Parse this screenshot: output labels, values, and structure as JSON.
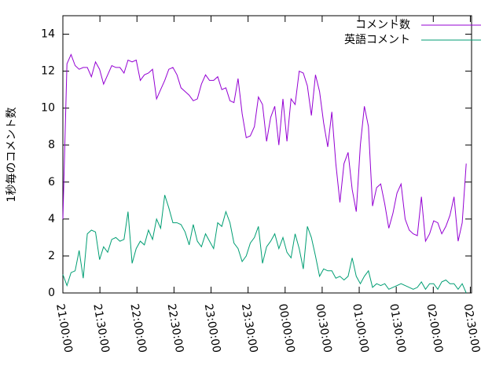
{
  "chart_data": {
    "type": "line",
    "y_label": "1秒毎のコメント数",
    "x": [
      0,
      3.3,
      6.6,
      9.9,
      13.2,
      16.5,
      19.8,
      23.1,
      26.4,
      29.7,
      33,
      36.3,
      39.6,
      42.9,
      46.2,
      49.5,
      52.8,
      56.1,
      59.4,
      62.7,
      66,
      69.3,
      72.6,
      75.9,
      79.2,
      82.5,
      85.8,
      89.1,
      92.4,
      95.7,
      99,
      102.3,
      105.6,
      108.9,
      112.2,
      115.5,
      118.8,
      122.1,
      125.4,
      128.7,
      132,
      135.3,
      138.6,
      141.9,
      145.2,
      148.5,
      151.8,
      155.1,
      158.4,
      161.7,
      165,
      168.3,
      171.6,
      174.9,
      178.2,
      181.5,
      184.8,
      188.1,
      191.4,
      194.7,
      198,
      201.3,
      204.6,
      207.9,
      211.2,
      214.5,
      217.8,
      221.1,
      224.4,
      227.7,
      231,
      234.3,
      237.6,
      240.9,
      244.2,
      247.5,
      250.8,
      254.1,
      257.4,
      260.7,
      264,
      267.3,
      270.6,
      273.9,
      277.2,
      280.5,
      283.8,
      287.1,
      290.4,
      293.7,
      297,
      300.3,
      303.6,
      306.9,
      310.2,
      313.5,
      316.8,
      320.1,
      323.4,
      326.7
    ],
    "series": [
      {
        "name": "コメント数",
        "color": "#9400d3",
        "values": [
          4.0,
          12.4,
          12.9,
          12.3,
          12.1,
          12.2,
          12.2,
          11.7,
          12.5,
          12.1,
          11.3,
          11.8,
          12.3,
          12.2,
          12.2,
          11.9,
          12.6,
          12.5,
          12.6,
          11.5,
          11.8,
          11.9,
          12.1,
          10.5,
          11.0,
          11.5,
          12.1,
          12.2,
          11.8,
          11.1,
          10.9,
          10.7,
          10.4,
          10.5,
          11.3,
          11.8,
          11.5,
          11.5,
          11.7,
          11.0,
          11.1,
          10.4,
          10.3,
          11.6,
          9.7,
          8.4,
          8.5,
          9.0,
          10.6,
          10.2,
          8.2,
          9.5,
          10.1,
          8.0,
          10.5,
          8.2,
          10.5,
          10.2,
          12.0,
          11.9,
          11.2,
          9.6,
          11.8,
          10.9,
          9.2,
          7.9,
          9.8,
          7.0,
          4.9,
          7.0,
          7.6,
          5.6,
          4.4,
          8.0,
          10.1,
          9.0,
          4.7,
          5.7,
          5.9,
          4.8,
          3.5,
          4.3,
          5.4,
          5.9,
          4.0,
          3.4,
          3.2,
          3.1,
          5.2,
          2.8,
          3.2,
          3.9,
          3.8,
          3.2,
          3.6,
          4.2,
          5.2,
          2.8,
          3.8,
          7.0
        ]
      },
      {
        "name": "英語コメント",
        "color": "#009e73",
        "values": [
          1.0,
          0.4,
          1.1,
          1.2,
          2.3,
          0.8,
          3.2,
          3.4,
          3.3,
          1.8,
          2.5,
          2.2,
          2.9,
          3.0,
          2.8,
          2.9,
          4.4,
          1.6,
          2.4,
          2.8,
          2.6,
          3.4,
          2.9,
          4.0,
          3.5,
          5.3,
          4.6,
          3.8,
          3.8,
          3.7,
          3.3,
          2.6,
          3.7,
          2.8,
          2.5,
          3.2,
          2.8,
          2.4,
          3.8,
          3.6,
          4.4,
          3.8,
          2.7,
          2.4,
          1.7,
          2.0,
          2.7,
          3.0,
          3.6,
          1.6,
          2.5,
          2.8,
          3.2,
          2.4,
          3.0,
          2.2,
          1.9,
          3.2,
          2.4,
          1.3,
          3.6,
          3.0,
          2.0,
          0.9,
          1.3,
          1.2,
          1.2,
          0.8,
          0.9,
          0.7,
          0.9,
          1.9,
          0.9,
          0.5,
          0.9,
          1.2,
          0.3,
          0.5,
          0.4,
          0.5,
          0.2,
          0.3,
          0.4,
          0.5,
          0.4,
          0.3,
          0.2,
          0.3,
          0.6,
          0.2,
          0.5,
          0.5,
          0.2,
          0.6,
          0.7,
          0.5,
          0.5,
          0.2,
          0.5,
          0.0
        ]
      }
    ],
    "xlim": [
      0,
      331
    ],
    "xticks": [
      {
        "value": 0,
        "label": "21:00:00"
      },
      {
        "value": 30,
        "label": "21:30:00"
      },
      {
        "value": 60,
        "label": "22:00:00"
      },
      {
        "value": 90,
        "label": "22:30:00"
      },
      {
        "value": 120,
        "label": "23:00:00"
      },
      {
        "value": 150,
        "label": "23:30:00"
      },
      {
        "value": 180,
        "label": "00:00:00"
      },
      {
        "value": 210,
        "label": "00:30:00"
      },
      {
        "value": 240,
        "label": "01:00:00"
      },
      {
        "value": 270,
        "label": "01:30:00"
      },
      {
        "value": 300,
        "label": "02:00:00"
      },
      {
        "value": 330,
        "label": "02:30:00"
      }
    ],
    "ylim": [
      0,
      15
    ],
    "yticks": [
      0,
      2,
      4,
      6,
      8,
      10,
      12,
      14
    ],
    "legend": "upper right"
  }
}
